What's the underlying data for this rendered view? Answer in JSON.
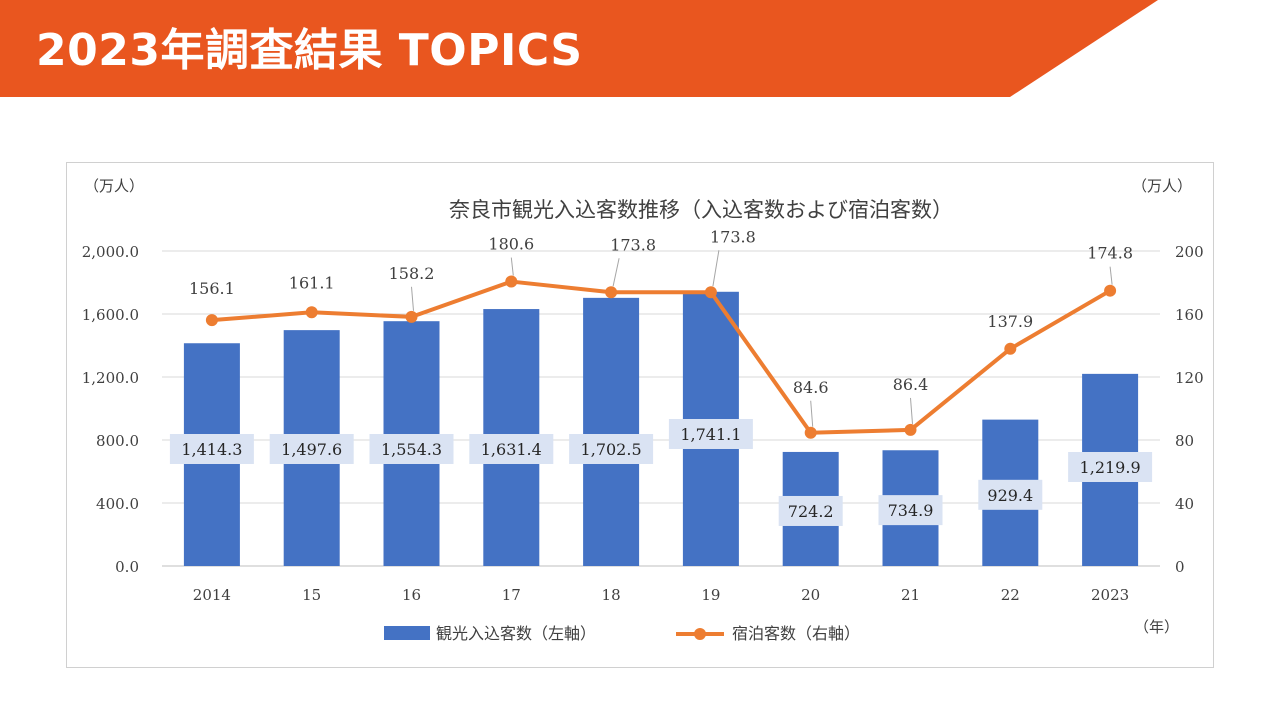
{
  "banner": {
    "title": "2023年調査結果 TOPICS",
    "color": "#E9561F"
  },
  "chart_data": {
    "type": "bar+line",
    "title": "奈良市観光入込客数推移（入込客数および宿泊客数）",
    "left_unit": "（万人）",
    "right_unit": "（万人）",
    "x_unit": "（年）",
    "categories": [
      "2014",
      "15",
      "16",
      "17",
      "18",
      "19",
      "20",
      "21",
      "22",
      "2023"
    ],
    "y_left": {
      "min": 0,
      "max": 2000,
      "ticks": [
        "0.0",
        "400.0",
        "800.0",
        "1,200.0",
        "1,600.0",
        "2,000.0"
      ],
      "tick_values": [
        0,
        400,
        800,
        1200,
        1600,
        2000
      ]
    },
    "y_right": {
      "min": 0,
      "max": 200,
      "ticks": [
        "0",
        "40",
        "80",
        "120",
        "160",
        "200"
      ],
      "tick_values": [
        0,
        40,
        80,
        120,
        160,
        200
      ]
    },
    "grid": true,
    "legend_position": "bottom",
    "series": [
      {
        "name": "観光入込客数（左軸）",
        "type": "bar",
        "axis": "left",
        "color": "#4472C4",
        "values": [
          1414.3,
          1497.6,
          1554.3,
          1631.4,
          1702.5,
          1741.1,
          724.2,
          734.9,
          929.4,
          1219.9
        ],
        "labels": [
          "1,414.3",
          "1,497.6",
          "1,554.3",
          "1,631.4",
          "1,702.5",
          "1,741.1",
          "724.2",
          "734.9",
          "929.4",
          "1,219.9"
        ]
      },
      {
        "name": "宿泊客数（右軸）",
        "type": "line",
        "axis": "right",
        "color": "#ED7D31",
        "values": [
          156.1,
          161.1,
          158.2,
          180.6,
          173.8,
          173.8,
          84.6,
          86.4,
          137.9,
          174.8
        ],
        "labels": [
          "156.1",
          "161.1",
          "158.2",
          "180.6",
          "173.8",
          "173.8",
          "84.6",
          "86.4",
          "137.9",
          "174.8"
        ]
      }
    ]
  }
}
